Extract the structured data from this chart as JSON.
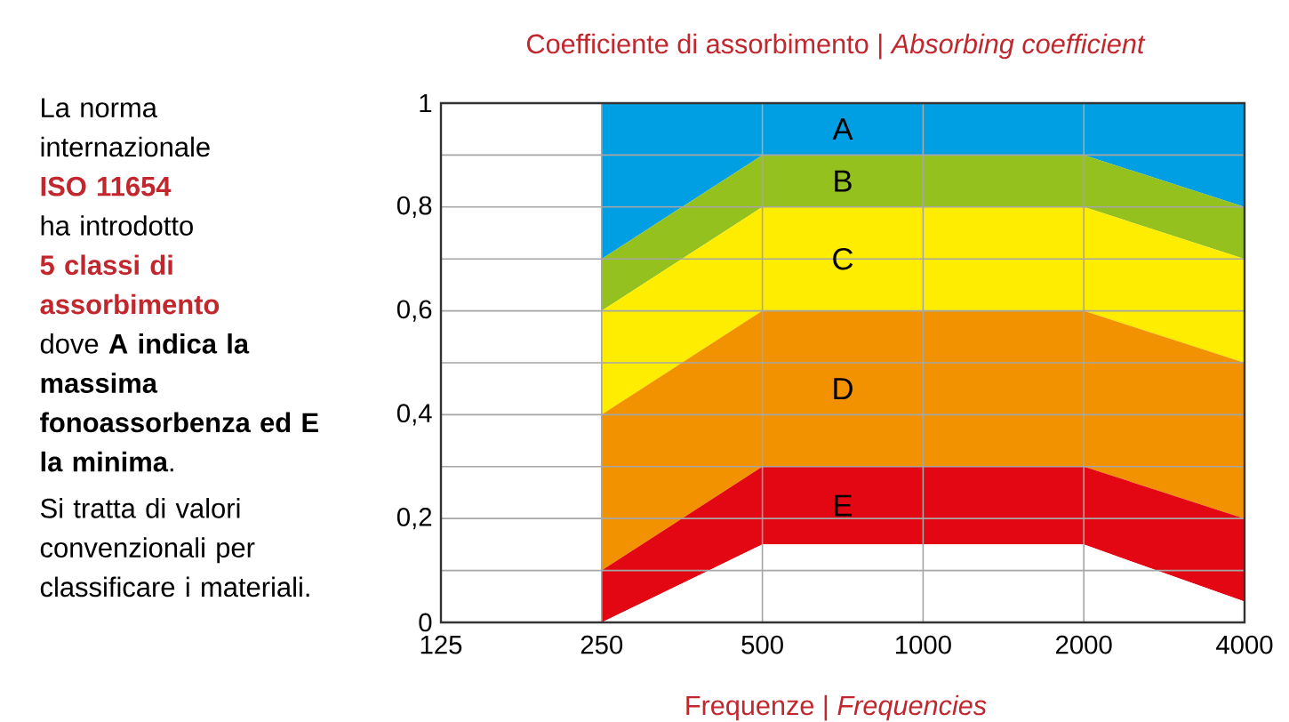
{
  "chart_data": {
    "type": "area",
    "stacked": true,
    "title": "Coefficiente di assorbimento | *Absorbing coefficient*",
    "xlabel": "Frequenze | *Frequencies*",
    "categories": [
      "125",
      "250",
      "500",
      "1000",
      "2000",
      "4000"
    ],
    "series": [
      {
        "color": "#ffffff",
        "values": [
          null,
          0,
          0.15,
          0.15,
          0.15,
          0.04
        ]
      },
      {
        "name": "E",
        "color": "#e30613",
        "values": [
          null,
          0.1,
          0.15,
          0.15,
          0.15,
          0.16
        ]
      },
      {
        "name": "D",
        "color": "#f39200",
        "values": [
          null,
          0.3,
          0.3,
          0.3,
          0.3,
          0.3
        ]
      },
      {
        "name": "C",
        "color": "#ffed00",
        "values": [
          null,
          0.2,
          0.2,
          0.2,
          0.2,
          0.2
        ]
      },
      {
        "name": "B",
        "color": "#95c11f",
        "values": [
          null,
          0.1,
          0.1,
          0.1,
          0.1,
          0.1
        ]
      },
      {
        "name": "A",
        "color": "#009fe3",
        "values": [
          null,
          0.3,
          0.1,
          0.1,
          0.1,
          0.2
        ]
      }
    ],
    "ylim": [
      0,
      1
    ],
    "yticks": [
      0,
      {
        "value": 0.1,
        "label": null
      },
      {
        "value": 0.2,
        "label": "0,2"
      },
      {
        "value": 0.3,
        "label": null
      },
      {
        "value": 0.4,
        "label": "0,4"
      },
      {
        "value": 0.5,
        "label": null
      },
      {
        "value": 0.6,
        "label": "0,6"
      },
      {
        "value": 0.7,
        "label": null
      },
      {
        "value": 0.8,
        "label": "0,8"
      },
      {
        "value": 0.9,
        "label": null
      },
      1
    ],
    "grid": true,
    "annotations": [
      "La norma internazionale",
      "ISO 11654",
      "ha introdotto",
      "5 classi di assorbimento",
      "dove **A indica la massima fonoassorbenza ed E la minima**.",
      "Si tratta di valori convenzionali per classificare i materiali."
    ]
  }
}
